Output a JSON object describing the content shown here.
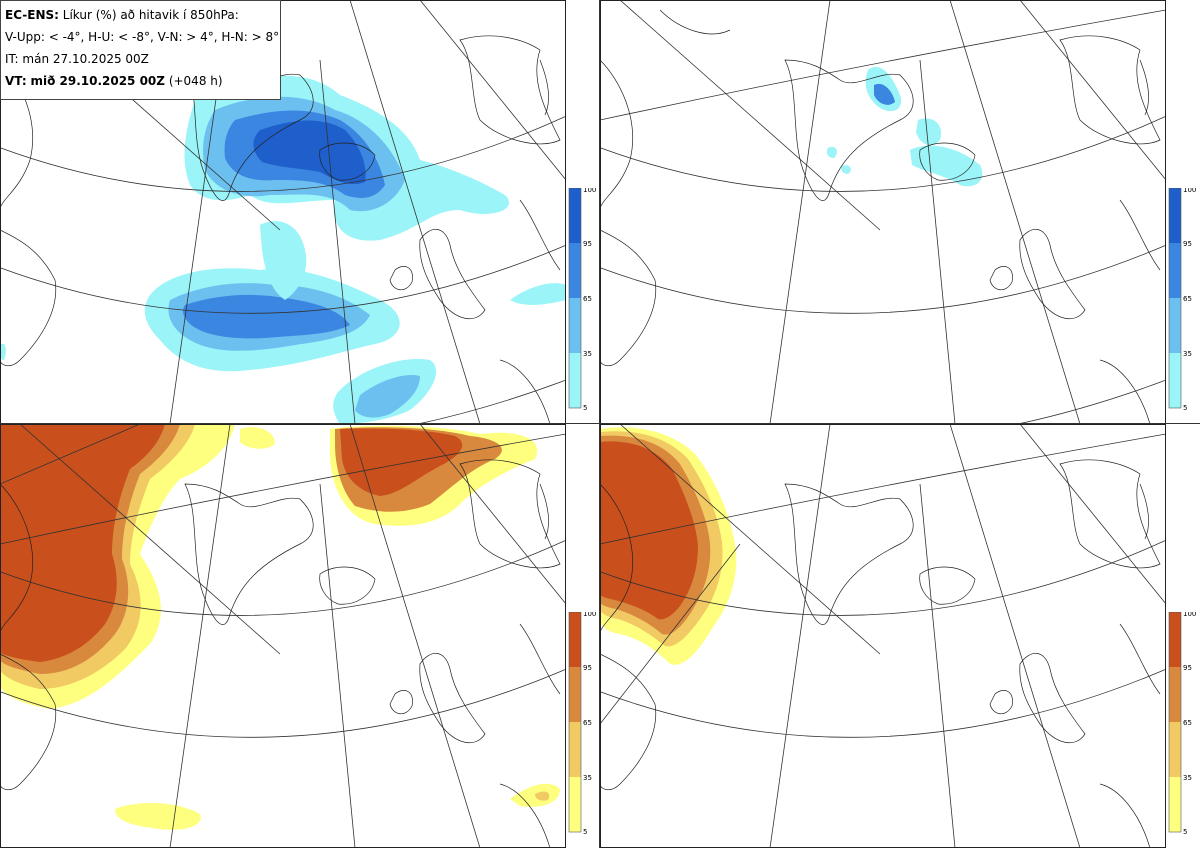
{
  "header": {
    "model": "EC-ENS:",
    "title": "Líkur (%) að hitavik í 850hPa:",
    "thresholds": "V-Upp: < -4°, H-U: < -8°, V-N: > 4°, H-N: > 8°",
    "init_label": "IT:",
    "init_time": "mán 27.10.2025 00Z",
    "valid_label": "VT:",
    "valid_time": "mið 29.10.2025 00Z",
    "lead": "(+048 h)"
  },
  "panels": [
    {
      "id": "top-left",
      "colormap": "blues"
    },
    {
      "id": "top-right",
      "colormap": "blues"
    },
    {
      "id": "bottom-left",
      "colormap": "oranges"
    },
    {
      "id": "bottom-right",
      "colormap": "oranges"
    }
  ],
  "colorbar": {
    "ticks": [
      "100",
      "95",
      "65",
      "35",
      "5"
    ],
    "cold_colors": [
      "#1f5fcc",
      "#3a86e0",
      "#6cc0ef",
      "#9af4f8"
    ],
    "warm_colors": [
      "#c94f1c",
      "#d9893e",
      "#f1ca63",
      "#feff7f"
    ]
  }
}
